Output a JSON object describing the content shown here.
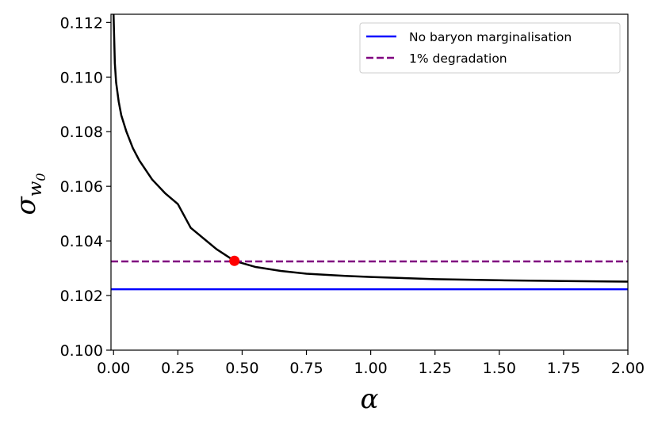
{
  "chart_data": {
    "type": "line",
    "xlabel": "α",
    "ylabel": {
      "symbol": "σ",
      "subscript": "w",
      "subsubscript": "0"
    },
    "xlim": [
      -0.01,
      2.0
    ],
    "ylim": [
      0.1,
      0.1123
    ],
    "x_ticks": [
      0.0,
      0.25,
      0.5,
      0.75,
      1.0,
      1.25,
      1.5,
      1.75,
      2.0
    ],
    "x_tick_labels": [
      "0.00",
      "0.25",
      "0.50",
      "0.75",
      "1.00",
      "1.25",
      "1.50",
      "1.75",
      "2.00"
    ],
    "y_ticks": [
      0.1,
      0.102,
      0.104,
      0.106,
      0.108,
      0.11,
      0.112
    ],
    "y_tick_labels": [
      "0.100",
      "0.102",
      "0.104",
      "0.106",
      "0.108",
      "0.110",
      "0.112"
    ],
    "grid": false,
    "legend_position": "top-right",
    "series": [
      {
        "name": "",
        "style": "solid",
        "color": "#000000",
        "x": [
          0.0,
          0.005,
          0.01,
          0.02,
          0.03,
          0.05,
          0.075,
          0.1,
          0.15,
          0.2,
          0.25,
          0.3,
          0.35,
          0.4,
          0.47,
          0.55,
          0.65,
          0.75,
          0.9,
          1.0,
          1.25,
          1.5,
          1.75,
          2.0
        ],
        "y": [
          0.1123,
          0.1105,
          0.1098,
          0.1091,
          0.1086,
          0.108,
          0.1074,
          0.10695,
          0.10625,
          0.10575,
          0.10535,
          0.10448,
          0.10409,
          0.1037,
          0.10327,
          0.10305,
          0.1029,
          0.1028,
          0.10272,
          0.10268,
          0.1026,
          0.10256,
          0.10253,
          0.10251
        ]
      },
      {
        "name": "No baryon marginalisation",
        "style": "solid",
        "color": "#0000ff",
        "constant": 0.10223
      },
      {
        "name": "1% degradation",
        "style": "dashed",
        "color": "#800080",
        "constant": 0.10325
      }
    ],
    "marker": {
      "x": 0.47,
      "y": 0.10327,
      "color": "#ff0000"
    }
  }
}
